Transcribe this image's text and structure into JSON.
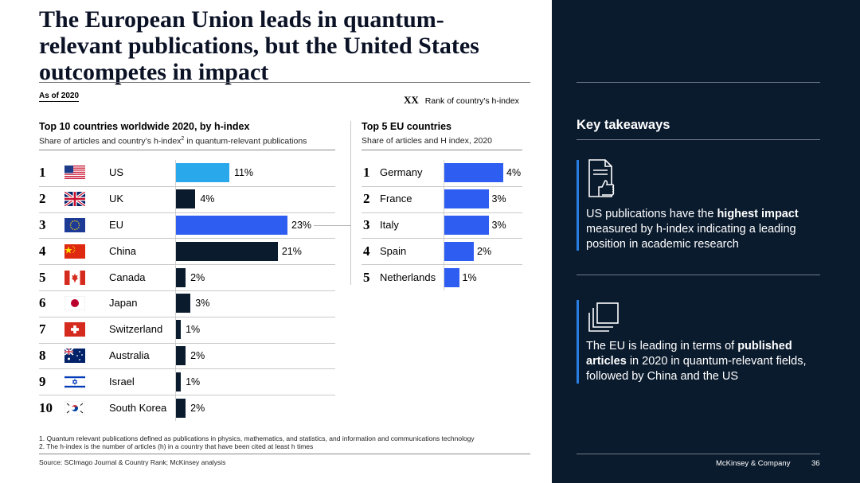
{
  "title": "The European Union leads in quantum-relevant publications, but the United States outcompetes in impact",
  "as_of": "As of 2020",
  "rank_key": {
    "symbol": "XX",
    "label": "Rank of country's h-index"
  },
  "left_chart": {
    "title": "Top 10 countries worldwide 2020, by h-index",
    "desc_before": "Share of articles and country’s h-index",
    "desc_sup": "2",
    "desc_after": " in quantum-relevant publications"
  },
  "right_chart": {
    "title": "Top 5 EU countries",
    "desc": "Share of articles and H index, 2020"
  },
  "chart_data": [
    {
      "type": "bar",
      "orientation": "horizontal",
      "title": "Top 10 countries worldwide 2020, by h-index",
      "ranks": [
        "1",
        "2",
        "3",
        "4",
        "5",
        "6",
        "7",
        "8",
        "9",
        "10"
      ],
      "categories": [
        "US",
        "UK",
        "EU",
        "China",
        "Canada",
        "Japan",
        "Switzerland",
        "Australia",
        "Israel",
        "South Korea"
      ],
      "values": [
        11,
        4,
        23,
        21,
        2,
        3,
        1,
        2,
        1,
        2
      ],
      "labels": [
        "11%",
        "4%",
        "23%",
        "21%",
        "2%",
        "3%",
        "1%",
        "2%",
        "1%",
        "2%"
      ],
      "colors": [
        "#2aa8ec",
        "#0b1b2e",
        "#2e5df2",
        "#0b1b2e",
        "#0b1b2e",
        "#0b1b2e",
        "#0b1b2e",
        "#0b1b2e",
        "#0b1b2e",
        "#0b1b2e"
      ],
      "xlim": [
        0,
        25
      ]
    },
    {
      "type": "bar",
      "orientation": "horizontal",
      "title": "Top 5 EU countries",
      "ranks": [
        "1",
        "2",
        "3",
        "4",
        "5"
      ],
      "categories": [
        "Germany",
        "France",
        "Italy",
        "Spain",
        "Netherlands"
      ],
      "values": [
        4,
        3,
        3,
        2,
        1
      ],
      "labels": [
        "4%",
        "3%",
        "3%",
        "2%",
        "1%"
      ],
      "colors": [
        "#2e5df2",
        "#2e5df2",
        "#2e5df2",
        "#2e5df2",
        "#2e5df2"
      ],
      "xlim": [
        0,
        4.5
      ]
    }
  ],
  "footnotes": [
    "1. Quantum relevant publications defined as publications in physics, mathematics, and statistics, and information and communications technology",
    "2. The h-index is the number of articles (h) in a country that have been cited at least h times"
  ],
  "source": "Source: SCImago Journal & Country Rank; McKinsey analysis",
  "panel": {
    "heading": "Key takeaways",
    "items": [
      {
        "icon": "thumbs-up-document-icon",
        "pre": "US publications have the ",
        "bold": "highest impact",
        "post": " measured by h-index indicating a leading position in academic research"
      },
      {
        "icon": "stacked-documents-icon",
        "pre": "The EU is leading in terms of ",
        "bold": "published articles",
        "post": " in 2020 in quantum-relevant fields, followed by China and the US"
      }
    ],
    "footer_brand": "McKinsey & Company",
    "page_number": "36"
  },
  "colors": {
    "navy": "#0b1b2e",
    "blue": "#2e5df2",
    "light_blue": "#2aa8ec",
    "accent": "#2a7de1"
  }
}
